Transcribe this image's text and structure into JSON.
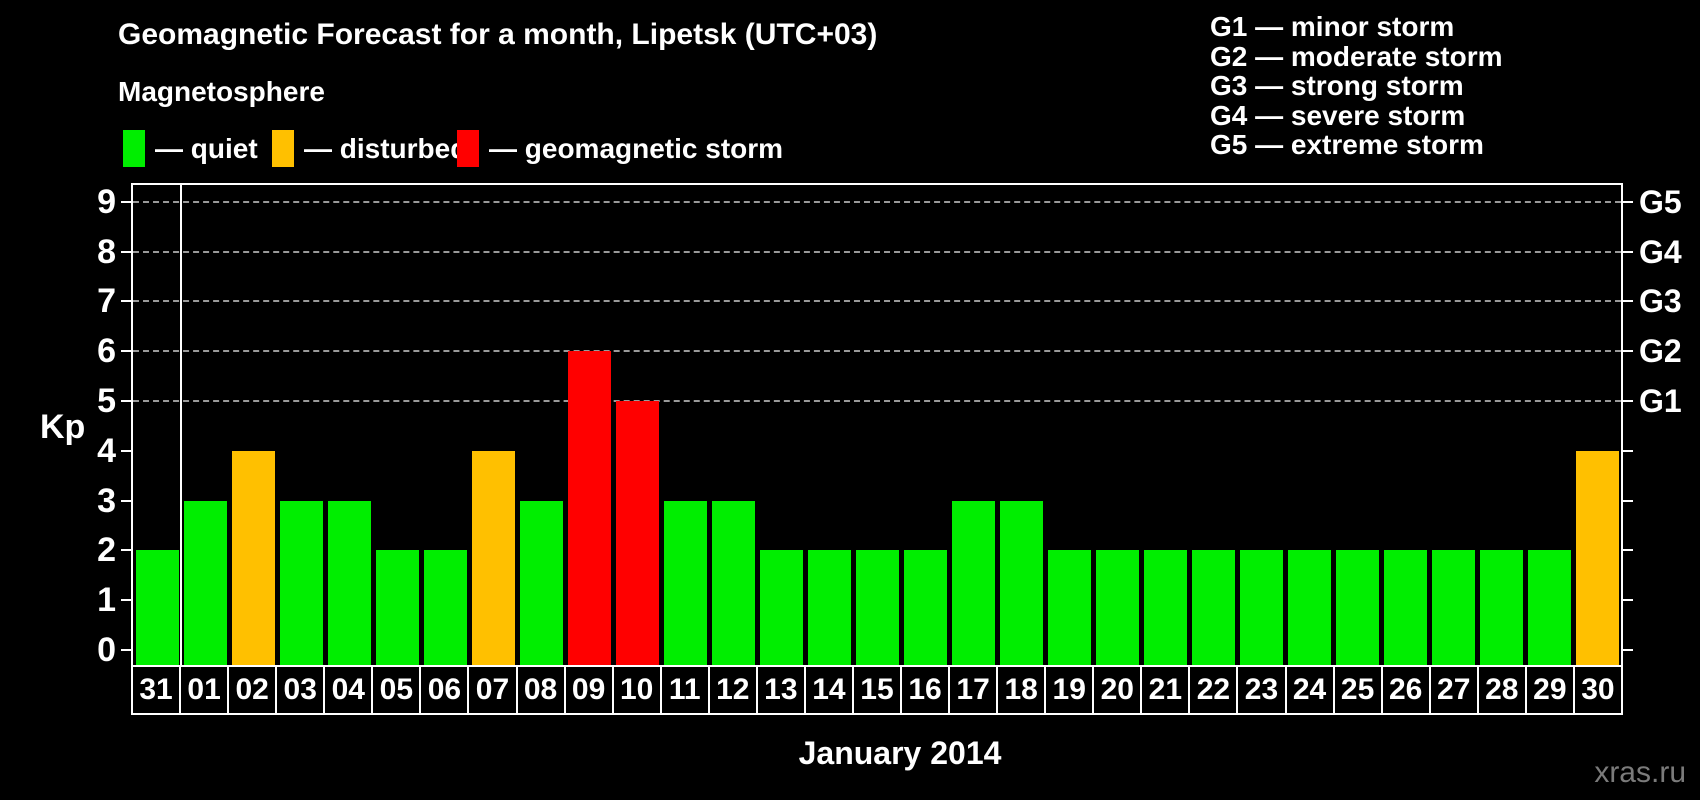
{
  "title": "Geomagnetic Forecast for a month, Lipetsk (UTC+03)",
  "legend": {
    "heading": "Magnetosphere",
    "items": [
      {
        "label": "— quiet",
        "status": "quiet",
        "color": "#00ee00"
      },
      {
        "label": "— disturbed",
        "status": "disturbed",
        "color": "#ffc000"
      },
      {
        "label": "— geomagnetic storm",
        "status": "storm",
        "color": "#ff0000"
      }
    ]
  },
  "g_legend": [
    "G1 — minor storm",
    "G2 — moderate storm",
    "G3 — strong storm",
    "G4 — severe storm",
    "G5 — extreme storm"
  ],
  "axes": {
    "y_label": "Kp",
    "y_ticks": [
      0,
      1,
      2,
      3,
      4,
      5,
      6,
      7,
      8,
      9
    ],
    "right_ticks": [
      {
        "label": "G1",
        "kp": 5
      },
      {
        "label": "G2",
        "kp": 6
      },
      {
        "label": "G3",
        "kp": 7
      },
      {
        "label": "G4",
        "kp": 8
      },
      {
        "label": "G5",
        "kp": 9
      }
    ],
    "x_label": "January 2014"
  },
  "watermark": "xras.ru",
  "chart_data": {
    "type": "bar",
    "title": "Geomagnetic Forecast for a month, Lipetsk (UTC+03)",
    "xlabel": "January 2014",
    "ylabel": "Kp",
    "ylim": [
      0,
      9
    ],
    "grid": "dashed horizontal at Kp 5-9 (G1-G5)",
    "legend_position": "top",
    "categories": [
      "31",
      "01",
      "02",
      "03",
      "04",
      "05",
      "06",
      "07",
      "08",
      "09",
      "10",
      "11",
      "12",
      "13",
      "14",
      "15",
      "16",
      "17",
      "18",
      "19",
      "20",
      "21",
      "22",
      "23",
      "24",
      "25",
      "26",
      "27",
      "28",
      "29",
      "30"
    ],
    "values": [
      2,
      3,
      4,
      3,
      3,
      2,
      2,
      4,
      3,
      6,
      5,
      3,
      3,
      2,
      2,
      2,
      2,
      3,
      3,
      2,
      2,
      2,
      2,
      2,
      2,
      2,
      2,
      2,
      2,
      2,
      4
    ],
    "statuses": [
      "quiet",
      "quiet",
      "disturbed",
      "quiet",
      "quiet",
      "quiet",
      "quiet",
      "disturbed",
      "quiet",
      "storm",
      "storm",
      "quiet",
      "quiet",
      "quiet",
      "quiet",
      "quiet",
      "quiet",
      "quiet",
      "quiet",
      "quiet",
      "quiet",
      "quiet",
      "quiet",
      "quiet",
      "quiet",
      "quiet",
      "quiet",
      "quiet",
      "quiet",
      "quiet",
      "disturbed"
    ],
    "status_colors": {
      "quiet": "#00ee00",
      "disturbed": "#ffc000",
      "storm": "#ff0000"
    }
  }
}
